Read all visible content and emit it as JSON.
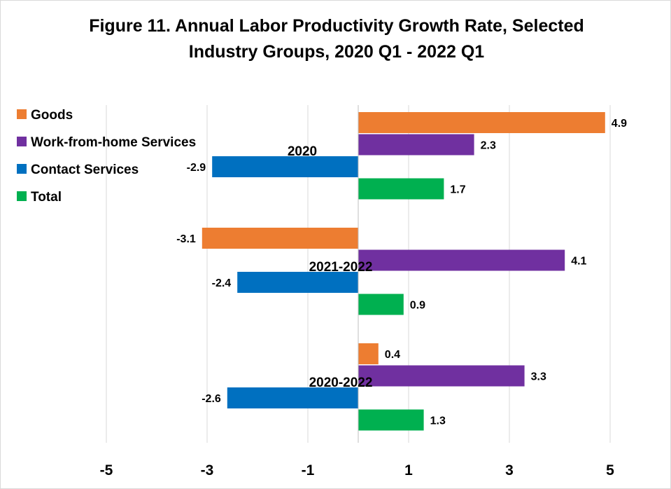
{
  "chart_data": {
    "type": "bar",
    "orientation": "horizontal",
    "title_lines": [
      "Figure 11. Annual Labor Productivity Growth Rate, Selected",
      "Industry Groups, 2020 Q1 - 2022 Q1"
    ],
    "categories": [
      "2020",
      "2021-2022",
      "2020-2022"
    ],
    "series": [
      {
        "name": "Goods",
        "color": "#ed7d31",
        "values": [
          4.9,
          -3.1,
          0.4
        ]
      },
      {
        "name": "Work-from-home Services",
        "color": "#7030a0",
        "values": [
          2.3,
          4.1,
          3.3
        ]
      },
      {
        "name": "Contact Services",
        "color": "#0070c0",
        "values": [
          -2.9,
          -2.4,
          -2.6
        ]
      },
      {
        "name": "Total",
        "color": "#00b050",
        "values": [
          1.7,
          0.9,
          1.3
        ]
      }
    ],
    "xlim": [
      -7,
      5
    ],
    "xticks": [
      -5,
      -3,
      -1,
      1,
      3,
      5
    ],
    "xtick_labels": [
      "-5",
      "-3",
      "-1",
      "1",
      "3",
      "5"
    ],
    "grid": true,
    "legend_position": "top-left",
    "data_labels": true
  }
}
